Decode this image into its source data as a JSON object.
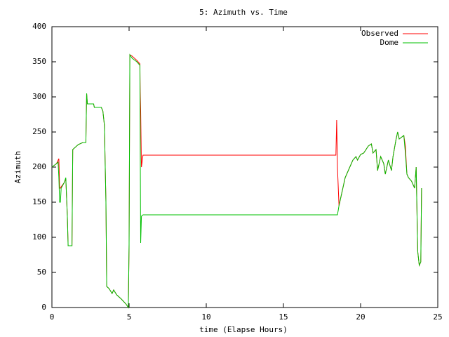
{
  "chart_data": {
    "type": "line",
    "title": "5: Azimuth vs. Time",
    "x_label": "time (Elapse Hours)",
    "y_label": "Azimuth",
    "xlim": [
      0,
      25
    ],
    "xticks": [
      0,
      5,
      10,
      15,
      20,
      25
    ],
    "ylim": [
      0,
      400
    ],
    "yticks": [
      0,
      50,
      100,
      150,
      200,
      250,
      300,
      350,
      400
    ],
    "legend": "top-right",
    "series": [
      {
        "name": "Observed",
        "color": "#ff0000",
        "x": [
          0,
          0.3,
          0.45,
          0.5,
          0.55,
          0.6,
          0.8,
          0.9,
          1.0,
          1.05,
          1.3,
          1.35,
          1.5,
          1.7,
          2.0,
          2.2,
          2.25,
          2.3,
          2.7,
          2.75,
          3.2,
          3.3,
          3.4,
          3.5,
          3.55,
          3.7,
          3.9,
          4.0,
          4.2,
          4.5,
          4.8,
          4.95,
          5.0,
          5.05,
          5.2,
          5.5,
          5.7,
          5.72,
          5.75,
          5.8,
          5.9,
          18.4,
          18.45,
          18.5,
          18.6,
          18.8,
          19.0,
          19.3,
          19.5,
          19.7,
          19.8,
          20.0,
          20.2,
          20.5,
          20.7,
          20.8,
          21.0,
          21.1,
          21.3,
          21.5,
          21.6,
          21.8,
          22.0,
          22.1,
          22.3,
          22.4,
          22.5,
          22.8,
          22.9,
          23.0,
          23.1,
          23.3,
          23.5,
          23.6,
          23.7,
          23.8,
          23.9,
          23.95
        ],
        "values": [
          200,
          205,
          212,
          170,
          170,
          172,
          178,
          183,
          130,
          88,
          88,
          225,
          228,
          232,
          235,
          235,
          305,
          290,
          290,
          285,
          285,
          280,
          260,
          150,
          30,
          27,
          20,
          25,
          18,
          12,
          5,
          0,
          90,
          360,
          358,
          352,
          347,
          307,
          280,
          200,
          217,
          217,
          267,
          200,
          145,
          165,
          185,
          200,
          210,
          215,
          210,
          218,
          220,
          230,
          233,
          220,
          225,
          195,
          215,
          205,
          190,
          210,
          195,
          215,
          240,
          250,
          240,
          245,
          230,
          190,
          185,
          180,
          170,
          200,
          80,
          60,
          65,
          170
        ]
      },
      {
        "name": "Dome",
        "color": "#00c000",
        "x": [
          0,
          0.3,
          0.4,
          0.45,
          0.5,
          0.55,
          0.6,
          0.8,
          0.9,
          1.0,
          1.05,
          1.3,
          1.35,
          1.5,
          1.7,
          2.0,
          2.2,
          2.25,
          2.3,
          2.7,
          2.75,
          3.2,
          3.3,
          3.4,
          3.5,
          3.55,
          3.7,
          3.9,
          4.0,
          4.2,
          4.5,
          4.8,
          4.95,
          5.0,
          5.05,
          5.2,
          5.5,
          5.7,
          5.75,
          5.8,
          5.9,
          18.5,
          18.6,
          18.8,
          19.0,
          19.3,
          19.5,
          19.7,
          19.8,
          20.0,
          20.2,
          20.5,
          20.7,
          20.8,
          21.0,
          21.1,
          21.3,
          21.5,
          21.6,
          21.8,
          22.0,
          22.1,
          22.3,
          22.4,
          22.5,
          22.8,
          22.9,
          23.0,
          23.1,
          23.3,
          23.5,
          23.6,
          23.7,
          23.8,
          23.9,
          23.95
        ],
        "values": [
          200,
          205,
          207,
          185,
          150,
          150,
          170,
          178,
          185,
          130,
          88,
          88,
          225,
          228,
          232,
          235,
          235,
          305,
          290,
          290,
          285,
          285,
          280,
          260,
          150,
          30,
          27,
          20,
          25,
          18,
          12,
          5,
          0,
          90,
          360,
          355,
          350,
          345,
          92,
          130,
          132,
          132,
          145,
          165,
          185,
          200,
          210,
          215,
          210,
          218,
          220,
          230,
          233,
          220,
          225,
          195,
          215,
          205,
          190,
          210,
          195,
          215,
          240,
          250,
          240,
          245,
          220,
          190,
          185,
          180,
          170,
          200,
          80,
          60,
          65,
          170
        ]
      }
    ]
  }
}
